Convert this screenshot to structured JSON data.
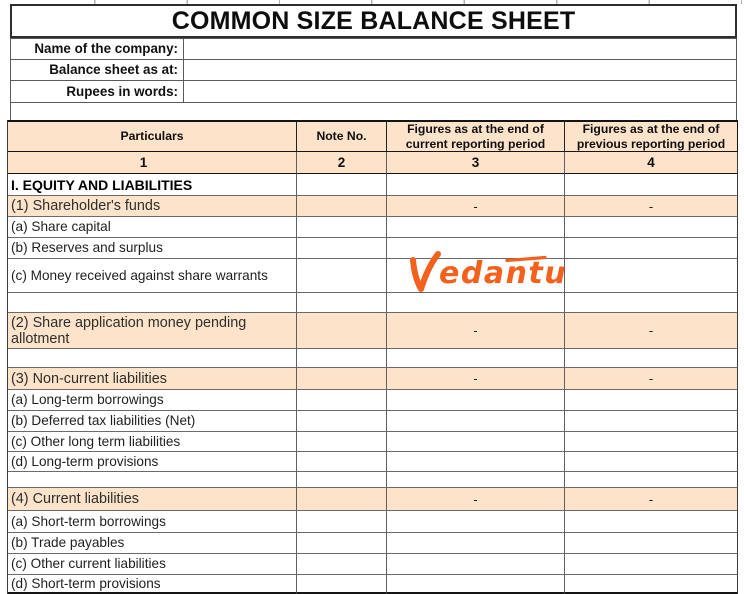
{
  "title": "COMMON SIZE BALANCE SHEET",
  "info_fields": [
    {
      "label": "Name of the company:",
      "value": ""
    },
    {
      "label": "Balance sheet as at:",
      "value": ""
    },
    {
      "label": "Rupees in words:",
      "value": ""
    }
  ],
  "table": {
    "headers": [
      "Particulars",
      "Note No.",
      "Figures as at the end of current reporting period",
      "Figures as at the end of previous reporting period"
    ],
    "column_numbers": [
      "1",
      "2",
      "3",
      "4"
    ],
    "rows": [
      {
        "style": "section",
        "particulars": "I. EQUITY AND LIABILITIES",
        "note": "",
        "current": "",
        "previous": ""
      },
      {
        "style": "highlight",
        "particulars": "(1) Shareholder's funds",
        "note": "",
        "current": "-",
        "previous": "-"
      },
      {
        "style": "item",
        "particulars": "(a) Share capital",
        "note": "",
        "current": "",
        "previous": ""
      },
      {
        "style": "item",
        "particulars": "(b) Reserves and surplus",
        "note": "",
        "current": "",
        "previous": ""
      },
      {
        "style": "item",
        "particulars": "(c) Money received against share warrants",
        "note": "",
        "current": "",
        "previous": ""
      },
      {
        "style": "empty",
        "particulars": "",
        "note": "",
        "current": "",
        "previous": ""
      },
      {
        "style": "highlight",
        "particulars": "(2) Share application money pending allotment",
        "note": "",
        "current": "-",
        "previous": "-"
      },
      {
        "style": "empty",
        "particulars": "",
        "note": "",
        "current": "",
        "previous": ""
      },
      {
        "style": "highlight",
        "particulars": "(3) Non-current liabilities",
        "note": "",
        "current": "-",
        "previous": "-"
      },
      {
        "style": "item",
        "particulars": "(a) Long-term borrowings",
        "note": "",
        "current": "",
        "previous": ""
      },
      {
        "style": "item",
        "particulars": "(b) Deferred tax liabilities (Net)",
        "note": "",
        "current": "",
        "previous": ""
      },
      {
        "style": "item",
        "particulars": "(c) Other long term liabilities",
        "note": "",
        "current": "",
        "previous": ""
      },
      {
        "style": "item",
        "particulars": "(d) Long-term provisions",
        "note": "",
        "current": "",
        "previous": ""
      },
      {
        "style": "empty",
        "particulars": "",
        "note": "",
        "current": "",
        "previous": ""
      },
      {
        "style": "highlight",
        "particulars": "(4) Current liabilities",
        "note": "",
        "current": "-",
        "previous": "-"
      },
      {
        "style": "item",
        "particulars": "(a) Short-term borrowings",
        "note": "",
        "current": "",
        "previous": ""
      },
      {
        "style": "item",
        "particulars": "(b) Trade payables",
        "note": "",
        "current": "",
        "previous": ""
      },
      {
        "style": "item",
        "particulars": "(c) Other current liabilities",
        "note": "",
        "current": "",
        "previous": ""
      },
      {
        "style": "item",
        "particulars": "(d) Short-term provisions",
        "note": "",
        "current": "",
        "previous": ""
      }
    ]
  },
  "watermark": {
    "text": "Vedantu"
  },
  "colors": {
    "highlight_bg": "#fce3c9",
    "logo_orange": "#f4611c"
  }
}
